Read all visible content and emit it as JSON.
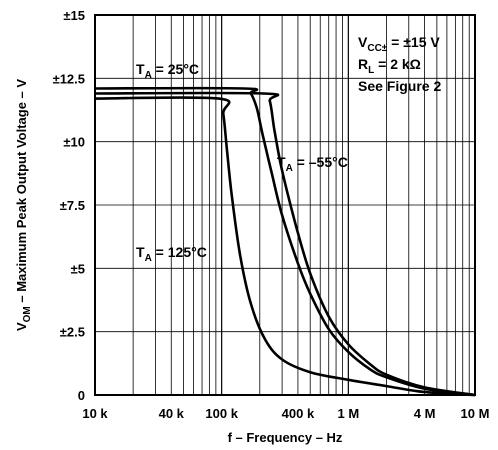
{
  "chart_data": {
    "type": "line",
    "xlabel": "f – Frequency – Hz",
    "ylabel_main": "V",
    "ylabel_sub": "OM",
    "ylabel_rest": " – Maximum Peak Output Voltage – V",
    "x_scale": "log",
    "xlim": [
      10000,
      10000000
    ],
    "ylim": [
      0,
      15
    ],
    "grid": true,
    "x_ticks": [
      {
        "value": 10000,
        "label": "10 k"
      },
      {
        "value": 40000,
        "label": "40 k"
      },
      {
        "value": 100000,
        "label": "100 k"
      },
      {
        "value": 400000,
        "label": "400 k"
      },
      {
        "value": 1000000,
        "label": "1 M"
      },
      {
        "value": 4000000,
        "label": "4 M"
      },
      {
        "value": 10000000,
        "label": "10 M"
      }
    ],
    "y_ticks": [
      {
        "value": 0,
        "label": "0"
      },
      {
        "value": 2.5,
        "label": "±2.5"
      },
      {
        "value": 5,
        "label": "±5"
      },
      {
        "value": 7.5,
        "label": "±7.5"
      },
      {
        "value": 10,
        "label": "±10"
      },
      {
        "value": 12.5,
        "label": "±12.5"
      },
      {
        "value": 15,
        "label": "±15"
      }
    ],
    "conditions": [
      {
        "main": "V",
        "sub": "CC±",
        "rest": " = ±15 V"
      },
      {
        "main": "R",
        "sub": "L",
        "rest": " = 2 kΩ"
      },
      {
        "main": "See Figure 2",
        "sub": "",
        "rest": ""
      }
    ],
    "series": [
      {
        "name_main": "T",
        "name_sub": "A",
        "name_rest": " = 25°C",
        "x": [
          10000,
          150000,
          170000,
          190000,
          210000,
          250000,
          300000,
          400000,
          500000,
          700000,
          1000000,
          1500000,
          2000000,
          4000000,
          10000000
        ],
        "y": [
          12.1,
          12.1,
          11.9,
          11.3,
          10.3,
          8.7,
          7.1,
          5.2,
          4.0,
          2.6,
          1.7,
          1.0,
          0.7,
          0.25,
          0.0
        ]
      },
      {
        "name_main": "T",
        "name_sub": "A",
        "name_rest": " = –55°C",
        "x": [
          10000,
          215000,
          240000,
          260000,
          290000,
          330000,
          400000,
          500000,
          700000,
          1000000,
          1500000,
          2000000,
          4000000,
          10000000
        ],
        "y": [
          11.9,
          11.9,
          11.6,
          10.5,
          9.2,
          8.0,
          6.4,
          4.8,
          3.1,
          2.0,
          1.2,
          0.8,
          0.3,
          0.0
        ]
      },
      {
        "name_main": "T",
        "name_sub": "A",
        "name_rest": " = 125°C",
        "x": [
          10000,
          95000,
          103000,
          110000,
          120000,
          140000,
          170000,
          220000,
          300000,
          500000,
          1000000,
          2000000,
          3500000,
          6000000,
          10000000
        ],
        "y": [
          11.7,
          11.7,
          11.1,
          9.7,
          7.9,
          5.5,
          3.6,
          2.2,
          1.4,
          0.9,
          0.6,
          0.35,
          0.15,
          0.05,
          0.0
        ]
      }
    ]
  }
}
